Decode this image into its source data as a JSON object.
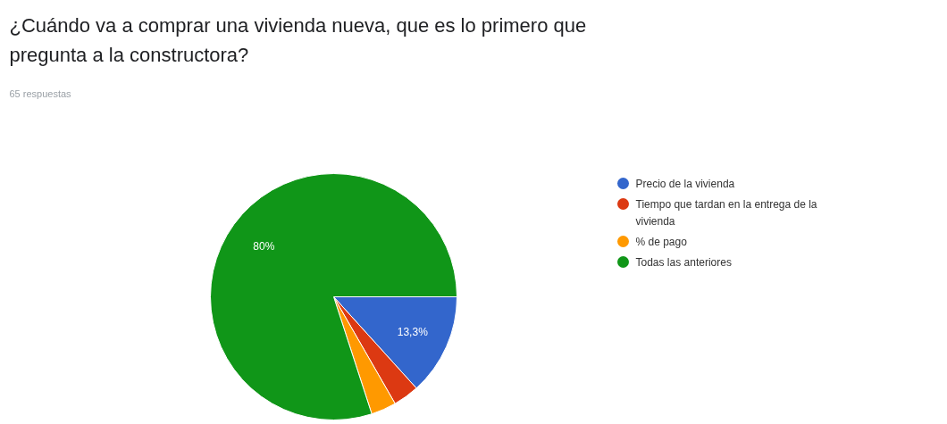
{
  "chart_data": {
    "type": "pie",
    "title": "¿Cuándo va a comprar una vivienda nueva, que es lo primero que pregunta a la constructora?",
    "subtitle": "65 respuestas",
    "categories": [
      "Precio de la vivienda",
      "Tiempo que tardan en la entrega de la vivienda",
      "% de pago",
      "Todas las anteriores"
    ],
    "values": [
      13.3,
      3.4,
      3.3,
      80
    ],
    "colors": [
      "#3366cc",
      "#dc3912",
      "#ff9900",
      "#109618"
    ],
    "value_labels": [
      "13,3%",
      null,
      null,
      "80%"
    ],
    "legend": "right"
  }
}
